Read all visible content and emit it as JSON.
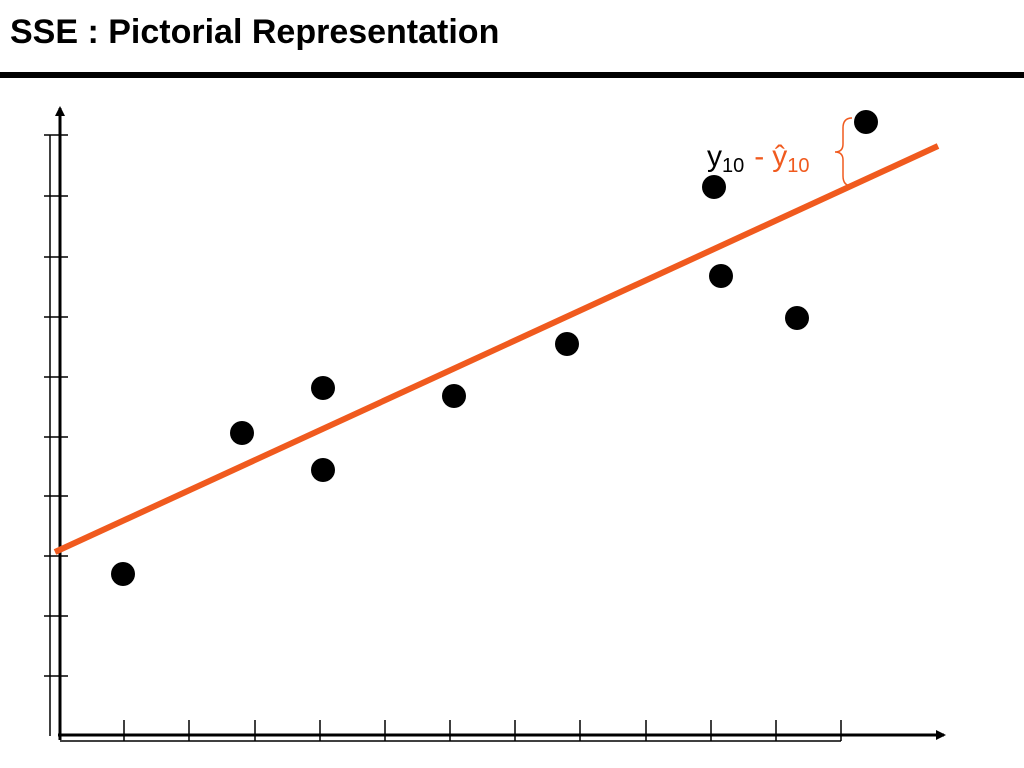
{
  "title": "SSE : Pictorial Representation",
  "annotation": {
    "y": "y",
    "y_subscript": "10",
    "minus": "-",
    "y_hat": "ŷ",
    "y_hat_subscript": "10"
  }
}
